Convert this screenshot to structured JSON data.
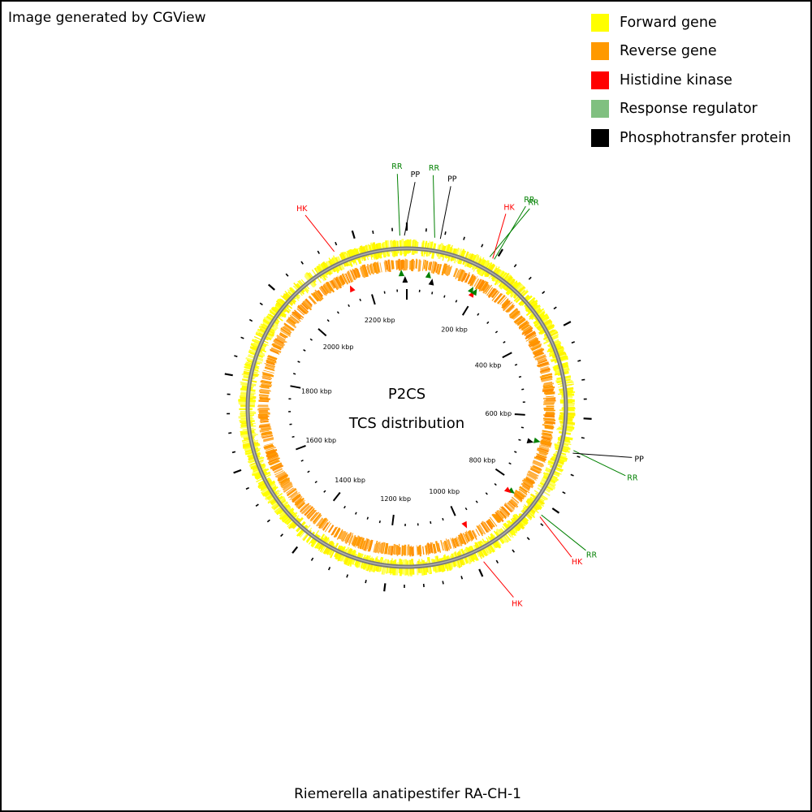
{
  "header": {
    "generator_text": "Image generated by CGView"
  },
  "legend": [
    {
      "label": "Forward gene",
      "color": "#ffff00"
    },
    {
      "label": "Reverse gene",
      "color": "#ff9900"
    },
    {
      "label": "Histidine kinase",
      "color": "#ff0000"
    },
    {
      "label": "Response regulator",
      "color": "#80c080"
    },
    {
      "label": "Phosphotransfer protein",
      "color": "#000000"
    }
  ],
  "map": {
    "center_title": "P2CS",
    "center_subtitle": "TCS distribution",
    "organism": "Riemerella anatipestifer RA-CH-1",
    "genome_length_kbp": 2310,
    "tick_labels_kbp": [
      200,
      400,
      600,
      800,
      1000,
      1200,
      1400,
      1600,
      1800,
      2000,
      2200
    ],
    "features": [
      {
        "type": "HK",
        "label": "HK",
        "position_kbp": 2150,
        "color": "#ff0000"
      },
      {
        "type": "RR",
        "label": "RR",
        "position_kbp": 2295,
        "color": "#008000"
      },
      {
        "type": "PP",
        "label": "PP",
        "position_kbp": 2305,
        "color": "#000000"
      },
      {
        "type": "RR",
        "label": "RR",
        "position_kbp": 60,
        "color": "#008000"
      },
      {
        "type": "PP",
        "label": "PP",
        "position_kbp": 72,
        "color": "#000000"
      },
      {
        "type": "RR",
        "label": "RR",
        "position_kbp": 185,
        "color": "#008000"
      },
      {
        "type": "HK",
        "label": "HK",
        "position_kbp": 192,
        "color": "#ff0000"
      },
      {
        "type": "RR",
        "label": "RR",
        "position_kbp": 196,
        "color": "#008000"
      },
      {
        "type": "RR",
        "label": "RR",
        "position_kbp": 670,
        "color": "#008000"
      },
      {
        "type": "PP",
        "label": "PP",
        "position_kbp": 676,
        "color": "#000000"
      },
      {
        "type": "RR",
        "label": "RR",
        "position_kbp": 825,
        "color": "#008000"
      },
      {
        "type": "HK",
        "label": "HK",
        "position_kbp": 830,
        "color": "#ff0000"
      },
      {
        "type": "HK",
        "label": "HK",
        "position_kbp": 985,
        "color": "#ff0000"
      }
    ]
  }
}
